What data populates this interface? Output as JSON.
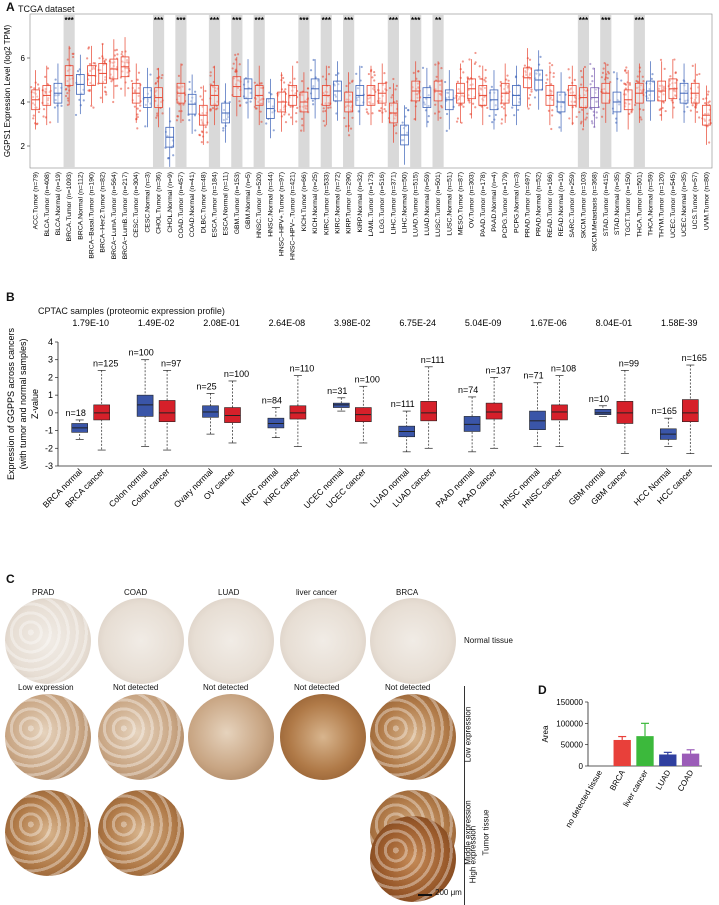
{
  "panel_labels": {
    "a": "A",
    "b": "B",
    "c": "C",
    "d": "D"
  },
  "panel_a": {
    "title": "TCGA dataset",
    "ylabel": "GGPS1 Expression Level (log2 TPM)",
    "ylim": [
      1,
      8
    ],
    "yticks": [
      2,
      4,
      6
    ],
    "categories": [
      {
        "label": "ACC.Tumor (n=79)",
        "median": 4.1,
        "color": "red"
      },
      {
        "label": "BLCA.Tumor (n=408)",
        "median": 4.3,
        "color": "red"
      },
      {
        "label": "BLCA.Normal (n=19)",
        "median": 4.4,
        "color": "blue"
      },
      {
        "label": "BRCA.Tumor (n=1093)",
        "median": 5.2,
        "color": "red",
        "sig": "***"
      },
      {
        "label": "BRCA.Normal (n=112)",
        "median": 4.8,
        "color": "blue"
      },
      {
        "label": "BRCA−Basal.Tumor (n=190)",
        "median": 5.2,
        "color": "red"
      },
      {
        "label": "BRCA−Her2.Tumor (n=82)",
        "median": 5.3,
        "color": "red"
      },
      {
        "label": "BRCA−LumA.Tumor (n=564)",
        "median": 5.5,
        "color": "red"
      },
      {
        "label": "BRCA−LumB.Tumor (n=217)",
        "median": 5.6,
        "color": "red"
      },
      {
        "label": "CESC.Tumor (n=304)",
        "median": 4.4,
        "color": "red"
      },
      {
        "label": "CESC.Normal (n=3)",
        "median": 4.2,
        "color": "blue"
      },
      {
        "label": "CHOL.Tumor (n=36)",
        "median": 4.2,
        "color": "red",
        "sig": "***"
      },
      {
        "label": "CHOL.Normal (n=9)",
        "median": 2.4,
        "color": "blue"
      },
      {
        "label": "COAD.Tumor (n=457)",
        "median": 4.4,
        "color": "red",
        "sig": "***"
      },
      {
        "label": "COAD.Normal (n=41)",
        "median": 3.9,
        "color": "blue"
      },
      {
        "label": "DLBC.Tumor (n=48)",
        "median": 3.4,
        "color": "red"
      },
      {
        "label": "ESCA.Tumor (n=184)",
        "median": 4.3,
        "color": "red",
        "sig": "***"
      },
      {
        "label": "ESCA.Normal (n=11)",
        "median": 3.5,
        "color": "blue"
      },
      {
        "label": "GBM.Tumor (n=153)",
        "median": 4.7,
        "color": "red",
        "sig": "***"
      },
      {
        "label": "GBM.Normal (n=5)",
        "median": 4.6,
        "color": "blue"
      },
      {
        "label": "HNSC.Tumor (n=520)",
        "median": 4.3,
        "color": "red",
        "sig": "***"
      },
      {
        "label": "HNSC.Normal (n=44)",
        "median": 3.7,
        "color": "blue"
      },
      {
        "label": "HNSC−HPV+.Tumor (n=97)",
        "median": 4.0,
        "color": "red"
      },
      {
        "label": "HNSC−HPV−.Tumor (n=421)",
        "median": 4.3,
        "color": "red"
      },
      {
        "label": "KICH.Tumor (n=66)",
        "median": 4.0,
        "color": "red",
        "sig": "***"
      },
      {
        "label": "KICH.Normal (n=25)",
        "median": 4.6,
        "color": "blue"
      },
      {
        "label": "KIRC.Tumor (n=533)",
        "median": 4.3,
        "color": "red",
        "sig": "***"
      },
      {
        "label": "KIRC.Normal (n=72)",
        "median": 4.5,
        "color": "blue"
      },
      {
        "label": "KIRP.Tumor (n=290)",
        "median": 4.0,
        "color": "red",
        "sig": "***"
      },
      {
        "label": "KIRP.Normal (n=32)",
        "median": 4.3,
        "color": "blue"
      },
      {
        "label": "LAML.Tumor (n=173)",
        "median": 4.3,
        "color": "red"
      },
      {
        "label": "LGG.Tumor (n=516)",
        "median": 4.4,
        "color": "red"
      },
      {
        "label": "LIHC.Tumor (n=371)",
        "median": 3.5,
        "color": "red",
        "sig": "***"
      },
      {
        "label": "LIHC.Normal (n=50)",
        "median": 2.5,
        "color": "blue"
      },
      {
        "label": "LUAD.Tumor (n=515)",
        "median": 4.5,
        "color": "red",
        "sig": "***"
      },
      {
        "label": "LUAD.Normal (n=59)",
        "median": 4.2,
        "color": "blue"
      },
      {
        "label": "LUSC.Tumor (n=501)",
        "median": 4.5,
        "color": "red",
        "sig": "**"
      },
      {
        "label": "LUSC.Normal (n=51)",
        "median": 4.1,
        "color": "blue"
      },
      {
        "label": "MESO.Tumor (n=87)",
        "median": 4.4,
        "color": "red"
      },
      {
        "label": "OV.Tumor (n=303)",
        "median": 4.6,
        "color": "red"
      },
      {
        "label": "PAAD.Tumor (n=178)",
        "median": 4.3,
        "color": "red"
      },
      {
        "label": "PAAD.Normal (n=4)",
        "median": 4.1,
        "color": "blue"
      },
      {
        "label": "PCPG.Tumor (n=179)",
        "median": 4.4,
        "color": "red"
      },
      {
        "label": "PCPG.Normal (n=3)",
        "median": 4.3,
        "color": "blue"
      },
      {
        "label": "PRAD.Tumor (n=497)",
        "median": 5.1,
        "color": "red"
      },
      {
        "label": "PRAD.Normal (n=52)",
        "median": 5.0,
        "color": "blue"
      },
      {
        "label": "READ.Tumor (n=166)",
        "median": 4.3,
        "color": "red"
      },
      {
        "label": "READ.Normal (n=10)",
        "median": 4.0,
        "color": "blue"
      },
      {
        "label": "SARC.Tumor (n=259)",
        "median": 4.3,
        "color": "red"
      },
      {
        "label": "SKCM.Tumor (n=103)",
        "median": 4.2,
        "color": "red",
        "sig": "***"
      },
      {
        "label": "SKCM.Metastasis (n=368)",
        "median": 4.2,
        "color": "purple"
      },
      {
        "label": "STAD.Tumor (n=415)",
        "median": 4.4,
        "color": "red",
        "sig": "***"
      },
      {
        "label": "STAD.Normal (n=35)",
        "median": 4.0,
        "color": "blue"
      },
      {
        "label": "TGCT.Tumor (n=150)",
        "median": 4.1,
        "color": "red"
      },
      {
        "label": "THCA.Tumor (n=501)",
        "median": 4.4,
        "color": "red",
        "sig": "***"
      },
      {
        "label": "THCA.Normal (n=59)",
        "median": 4.5,
        "color": "blue"
      },
      {
        "label": "THYM.Tumor (n=120)",
        "median": 4.5,
        "color": "red"
      },
      {
        "label": "UCEC.Tumor (n=545)",
        "median": 4.6,
        "color": "red"
      },
      {
        "label": "UCEC.Normal (n=35)",
        "median": 4.4,
        "color": "blue"
      },
      {
        "label": "UCS.Tumor (n=57)",
        "median": 4.4,
        "color": "red"
      },
      {
        "label": "UVM.Tumor (n=80)",
        "median": 3.4,
        "color": "red"
      }
    ]
  },
  "panel_b": {
    "title": "CPTAC samples (proteomic expression profile)",
    "ylabel_1": "Expression of GGPPS across cancers",
    "ylabel_2": "(with tumor and normal samples)",
    "ylabel_3": "Z-value",
    "ylim": [
      -3,
      4
    ],
    "yticks": [
      -3,
      -2,
      -1,
      0,
      1,
      2,
      3,
      4
    ],
    "groups": [
      {
        "p": "1.79E-10",
        "normal": {
          "label": "BRCA normal",
          "n": "n=18",
          "min": -1.5,
          "q1": -1.1,
          "med": -0.85,
          "q3": -0.6,
          "max": -0.4
        },
        "cancer": {
          "label": "BRCA cancer",
          "n": "n=125",
          "min": -2.1,
          "q1": -0.4,
          "med": 0.0,
          "q3": 0.45,
          "max": 2.4
        }
      },
      {
        "p": "1.49E-02",
        "normal": {
          "label": "Colon normal",
          "n": "n=100",
          "min": -1.9,
          "q1": -0.2,
          "med": 0.45,
          "q3": 1.0,
          "max": 3.0
        },
        "cancer": {
          "label": "Colon cancer",
          "n": "n=97",
          "min": -2.1,
          "q1": -0.5,
          "med": 0.0,
          "q3": 0.7,
          "max": 2.4
        }
      },
      {
        "p": "2.08E-01",
        "normal": {
          "label": "Ovary normal",
          "n": "n=25",
          "min": -1.2,
          "q1": -0.25,
          "med": 0.05,
          "q3": 0.4,
          "max": 1.1
        },
        "cancer": {
          "label": "OV cancer",
          "n": "n=100",
          "min": -1.7,
          "q1": -0.55,
          "med": -0.15,
          "q3": 0.3,
          "max": 1.8
        }
      },
      {
        "p": "2.64E-08",
        "normal": {
          "label": "KIRC normal",
          "n": "n=84",
          "min": -1.4,
          "q1": -0.85,
          "med": -0.6,
          "q3": -0.3,
          "max": 0.3
        },
        "cancer": {
          "label": "KIRC cancer",
          "n": "n=110",
          "min": -1.9,
          "q1": -0.35,
          "med": 0.0,
          "q3": 0.4,
          "max": 2.1
        }
      },
      {
        "p": "3.98E-02",
        "normal": {
          "label": "UCEC normal",
          "n": "n=31",
          "min": 0.1,
          "q1": 0.3,
          "med": 0.45,
          "q3": 0.55,
          "max": 0.85
        },
        "cancer": {
          "label": "UCEC cancer",
          "n": "n=100",
          "min": -1.7,
          "q1": -0.5,
          "med": -0.1,
          "q3": 0.3,
          "max": 1.5
        }
      },
      {
        "p": "6.75E-24",
        "normal": {
          "label": "LUAD normal",
          "n": "n=111",
          "min": -2.2,
          "q1": -1.35,
          "med": -1.05,
          "q3": -0.75,
          "max": 0.1
        },
        "cancer": {
          "label": "LUAD cancer",
          "n": "n=111",
          "min": -2.0,
          "q1": -0.45,
          "med": 0.0,
          "q3": 0.65,
          "max": 2.6
        }
      },
      {
        "p": "5.04E-09",
        "normal": {
          "label": "PAAD normal",
          "n": "n=74",
          "min": -2.2,
          "q1": -1.05,
          "med": -0.65,
          "q3": -0.2,
          "max": 0.9
        },
        "cancer": {
          "label": "PAAD cancer",
          "n": "n=137",
          "min": -2.0,
          "q1": -0.35,
          "med": 0.05,
          "q3": 0.55,
          "max": 2.0
        }
      },
      {
        "p": "1.67E-06",
        "normal": {
          "label": "HNSC normal",
          "n": "n=71",
          "min": -1.9,
          "q1": -0.95,
          "med": -0.45,
          "q3": 0.1,
          "max": 1.7
        },
        "cancer": {
          "label": "HNSC cancer",
          "n": "n=108",
          "min": -1.9,
          "q1": -0.4,
          "med": 0.05,
          "q3": 0.45,
          "max": 2.1
        }
      },
      {
        "p": "8.04E-01",
        "normal": {
          "label": "GBM normal",
          "n": "n=10",
          "min": -0.2,
          "q1": -0.1,
          "med": 0.0,
          "q3": 0.2,
          "max": 0.4
        },
        "cancer": {
          "label": "GBM cancer",
          "n": "n=99",
          "min": -2.3,
          "q1": -0.6,
          "med": 0.0,
          "q3": 0.65,
          "max": 2.4
        }
      },
      {
        "p": "1.58E-39",
        "normal": {
          "label": "HCC Normal",
          "n": "n=165",
          "min": -1.9,
          "q1": -1.5,
          "med": -1.2,
          "q3": -0.9,
          "max": -0.3
        },
        "cancer": {
          "label": "HCC cancer",
          "n": "n=165",
          "min": -2.3,
          "q1": -0.5,
          "med": 0.0,
          "q3": 0.75,
          "max": 2.7
        }
      }
    ]
  },
  "panel_c": {
    "headers": [
      "PRAD",
      "COAD",
      "LUAD",
      "liver cancer",
      "BRCA"
    ],
    "status": [
      "Low expression",
      "Not detected",
      "Not detected",
      "Not detected",
      "Not detected"
    ],
    "normal_label": "Normal tissue",
    "tumor_label": "Tumor tissue",
    "low_label": "Low expression",
    "middle_label": "Middle expression",
    "high_label": "High expression",
    "scalebar": "200 μm"
  },
  "chart_data": {
    "type": "bar",
    "ylabel": "Area",
    "categories": [
      "no detected tissue",
      "BRCA",
      "liver cancer",
      "LUAD",
      "COAD"
    ],
    "values": [
      0,
      61000,
      70000,
      27000,
      29000
    ],
    "errors": [
      0,
      8000,
      30000,
      5000,
      9000
    ],
    "colors": [
      "#ffffff",
      "#e8403a",
      "#3cb93c",
      "#2f3f9f",
      "#9b5cb8"
    ],
    "ylim": [
      0,
      150000
    ],
    "yticks": [
      0,
      50000,
      100000,
      150000
    ],
    "ytick_labels": [
      "0",
      "50000",
      "100000",
      "150000"
    ]
  }
}
